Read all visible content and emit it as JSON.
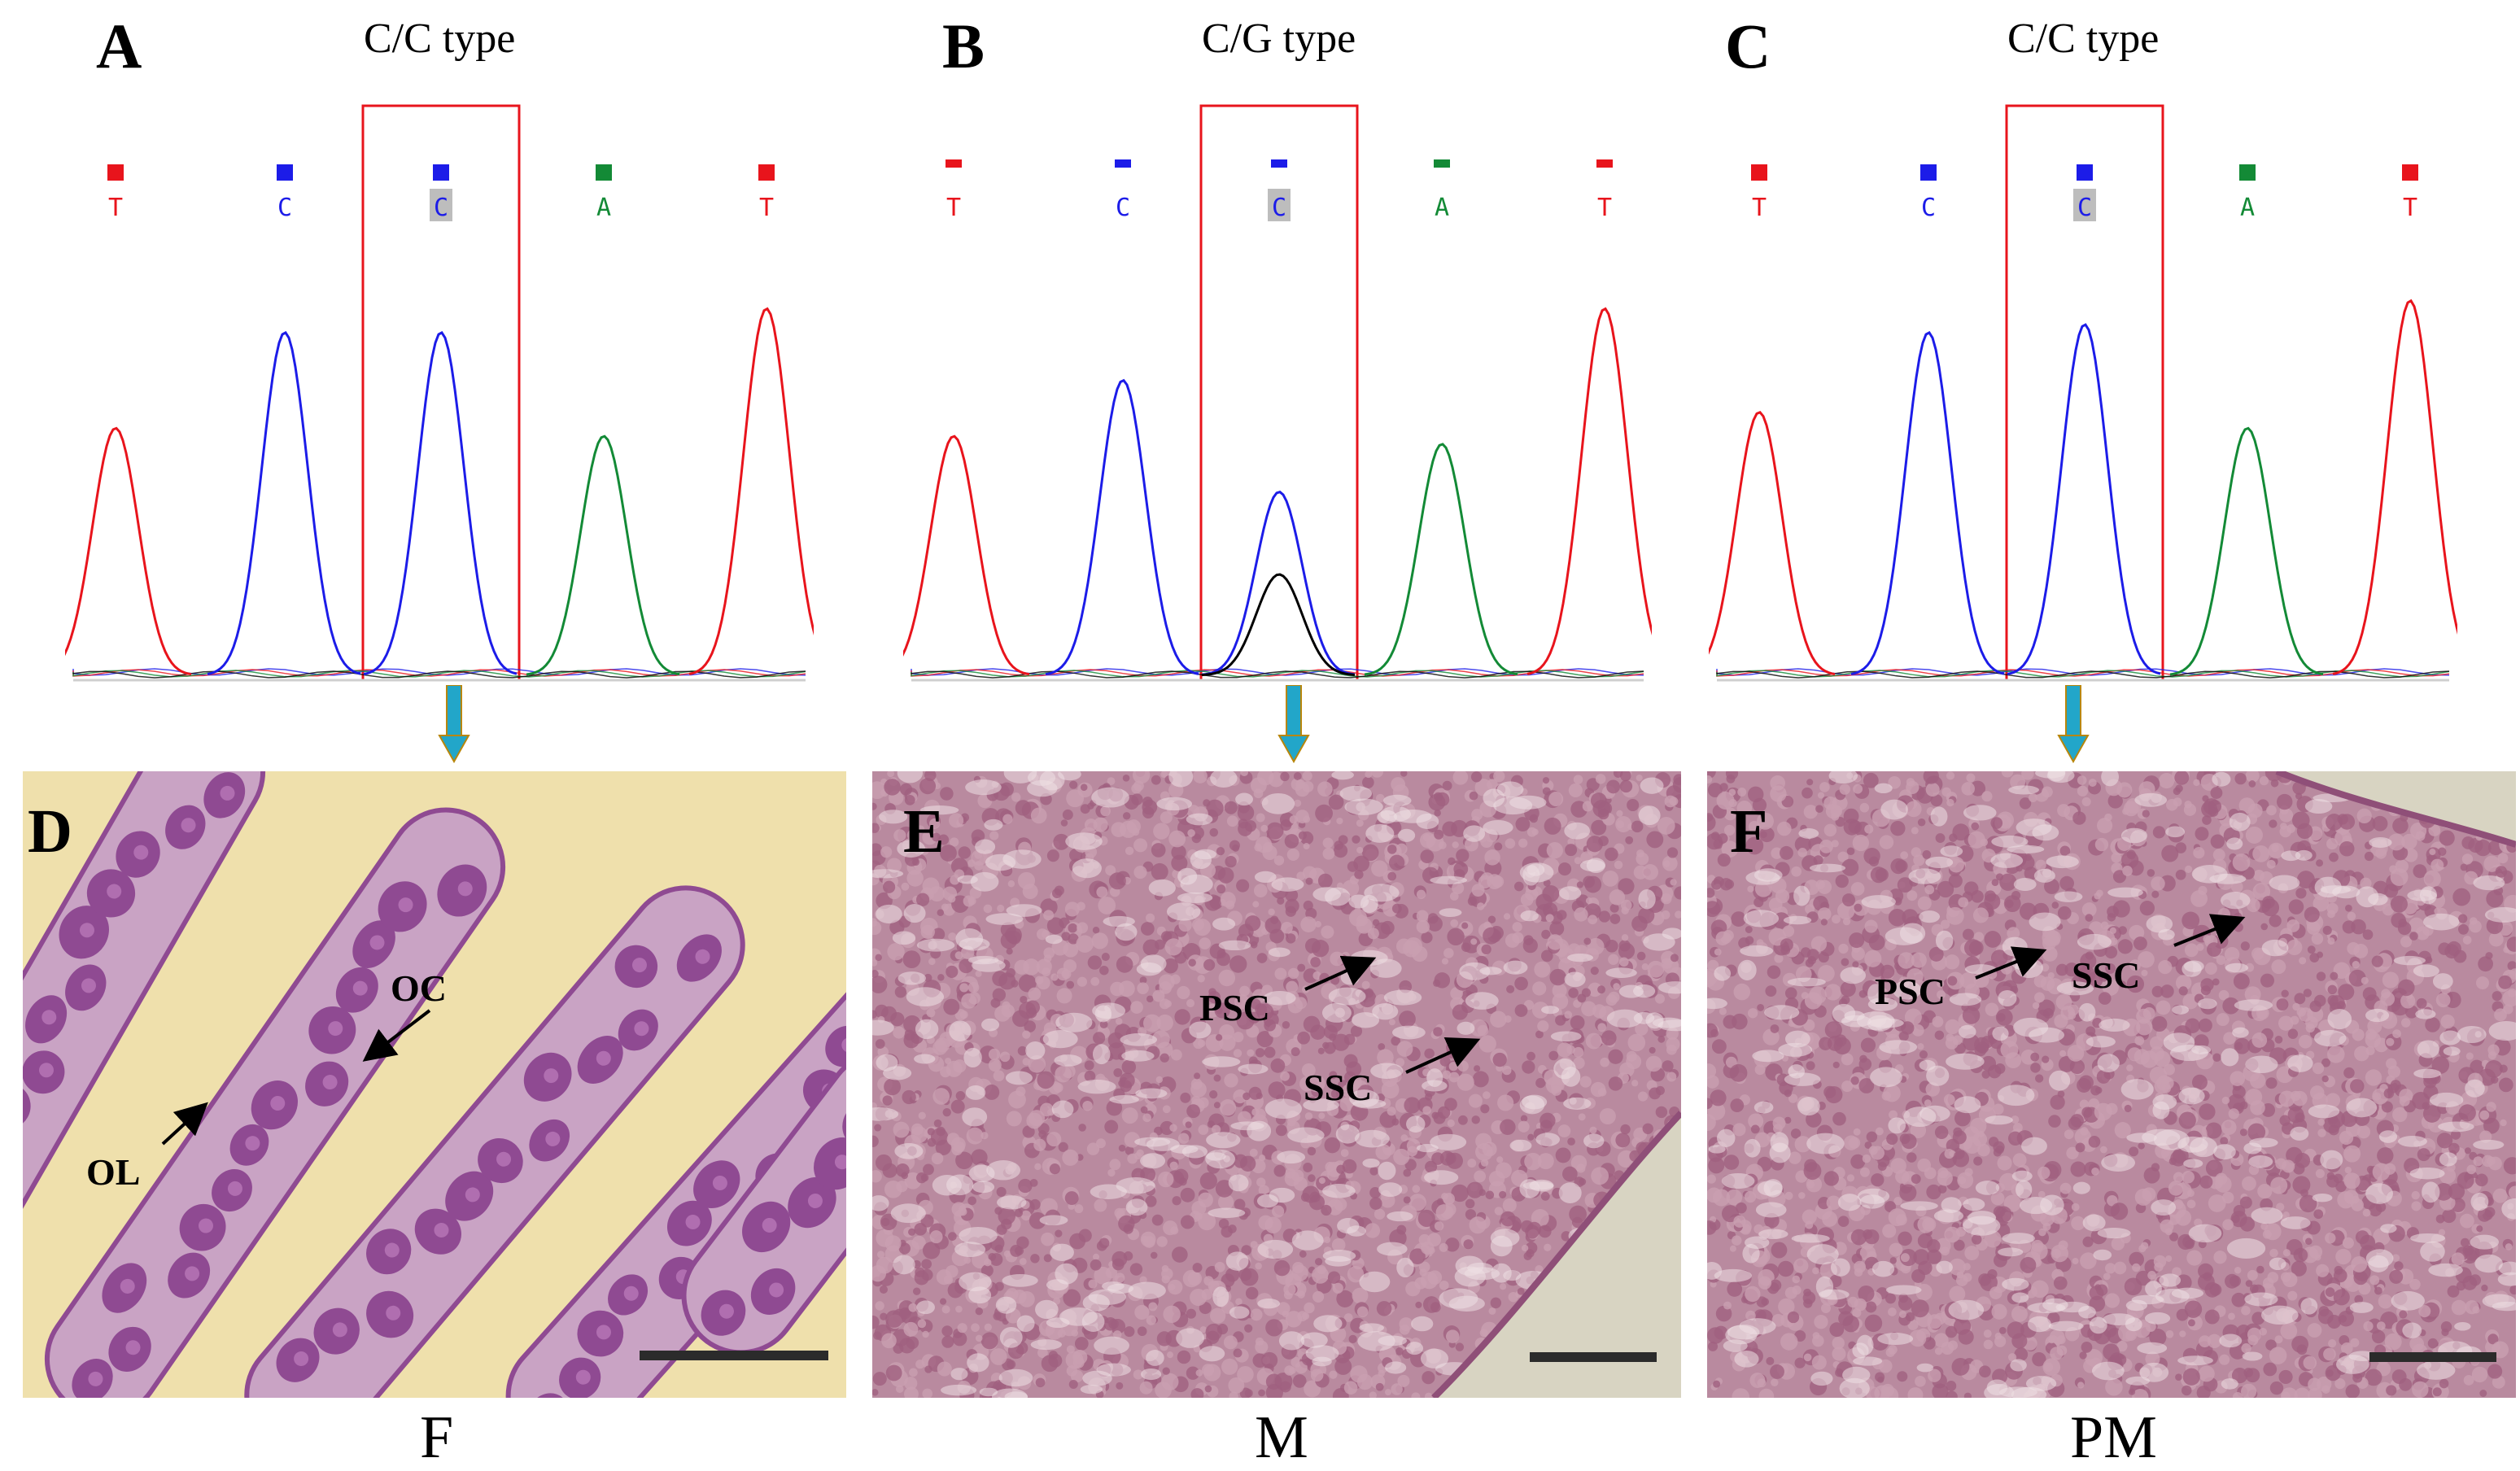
{
  "figure": {
    "chromatograms": [
      {
        "panel": "A",
        "title": "C/C type",
        "bases": [
          "T",
          "C",
          "C",
          "A",
          "T"
        ],
        "highlight_index": 2,
        "genotype": "homozygous-C"
      },
      {
        "panel": "B",
        "title": "C/G type",
        "bases": [
          "T",
          "C",
          "C",
          "A",
          "T"
        ],
        "highlight_index": 2,
        "genotype": "heterozygous-CG"
      },
      {
        "panel": "C",
        "title": "C/C type",
        "bases": [
          "T",
          "C",
          "C",
          "A",
          "T"
        ],
        "highlight_index": 2,
        "genotype": "homozygous-C"
      }
    ],
    "histology": [
      {
        "panel": "D",
        "group": "F",
        "tissue_color": "#8f4a92",
        "background_color": "#efe0ac",
        "labels": [
          "OC",
          "OL"
        ]
      },
      {
        "panel": "E",
        "group": "M",
        "tissue_color": "#a8677f",
        "background_color": "#b9a4a9",
        "labels": [
          "PSC",
          "SSC"
        ]
      },
      {
        "panel": "F",
        "group": "PM",
        "tissue_color": "#a8677f",
        "background_color": "#b9a4a9",
        "labels": [
          "PSC",
          "SSC"
        ]
      }
    ],
    "base_colors": {
      "T": "#e8141c",
      "C": "#1c1ce8",
      "A": "#138a36",
      "G": "#000000"
    },
    "highlight_box_color": "#e8141c",
    "arrow_color": "#22a6c9"
  }
}
